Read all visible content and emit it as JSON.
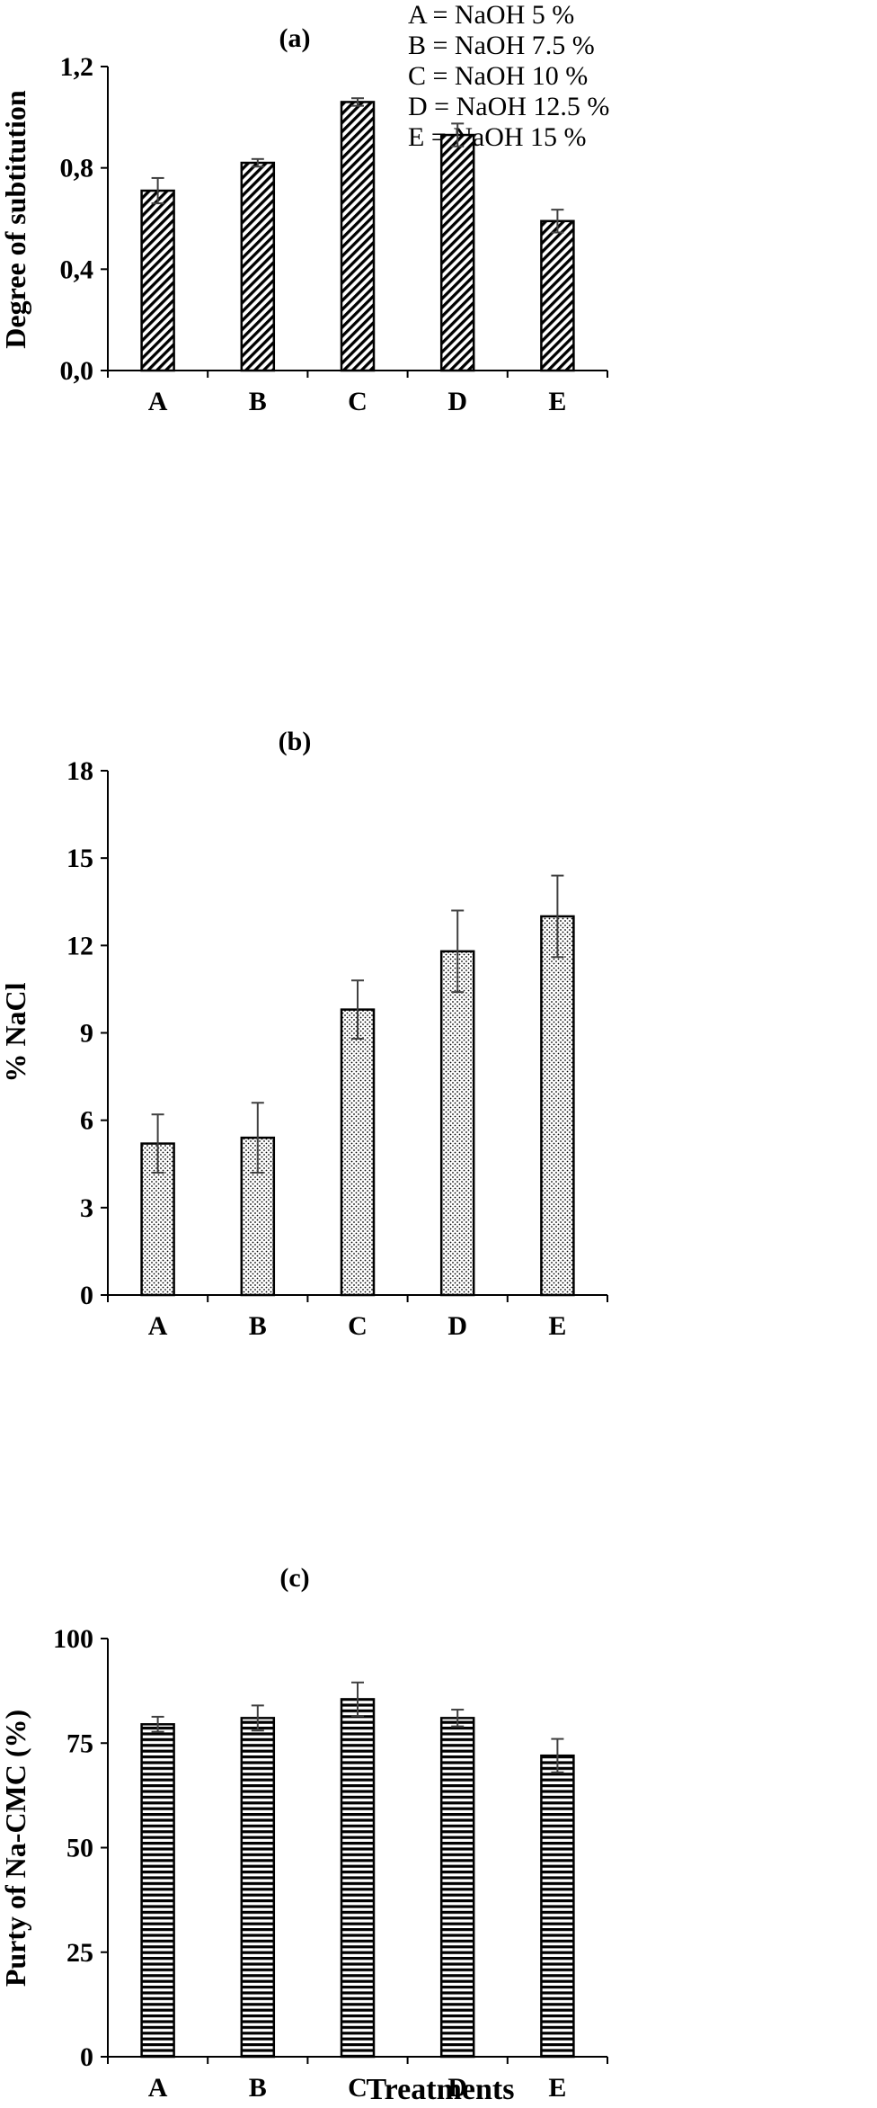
{
  "legend": [
    "A = NaOH 5 %",
    "B = NaOH 7.5 %",
    "C = NaOH 10 %",
    "D = NaOH 12.5 %",
    "E = NaOH 15 %"
  ],
  "colors": {
    "axis": "#000000",
    "bar_stroke": "#000000",
    "error_bar": "#404040",
    "background": "#ffffff"
  },
  "chart_data": [
    {
      "type": "bar",
      "panel_label": "(a)",
      "categories": [
        "A",
        "B",
        "C",
        "D",
        "E"
      ],
      "values": [
        0.71,
        0.82,
        1.06,
        0.93,
        0.59
      ],
      "errors": [
        0.05,
        0.015,
        0.015,
        0.045,
        0.045
      ],
      "xlabel": "",
      "ylabel": "Degree of subtitution",
      "ylim": [
        0,
        1.2
      ],
      "yticks": [
        0,
        0.4,
        0.8,
        1.2
      ],
      "ytick_labels": [
        "0,0",
        "0,4",
        "0,8",
        "1,2"
      ],
      "pattern": "diagonal-hatch",
      "grid": false
    },
    {
      "type": "bar",
      "panel_label": "(b)",
      "categories": [
        "A",
        "B",
        "C",
        "D",
        "E"
      ],
      "values": [
        5.2,
        5.4,
        9.8,
        11.8,
        13.0
      ],
      "errors": [
        1.0,
        1.2,
        1.0,
        1.4,
        1.4
      ],
      "xlabel": "",
      "ylabel": "% NaCl",
      "ylim": [
        0,
        18
      ],
      "yticks": [
        0,
        3,
        6,
        9,
        12,
        15,
        18
      ],
      "ytick_labels": [
        "0",
        "3",
        "6",
        "9",
        "12",
        "15",
        "18"
      ],
      "pattern": "dots",
      "grid": false
    },
    {
      "type": "bar",
      "panel_label": "(c)",
      "categories": [
        "A",
        "B",
        "C",
        "D",
        "E"
      ],
      "values": [
        79.5,
        81,
        85.5,
        81,
        72
      ],
      "errors": [
        1.8,
        3,
        4,
        2,
        4
      ],
      "xlabel": "Treatments",
      "ylabel": "Purty of Na-CMC (%)",
      "ylim": [
        0,
        100
      ],
      "yticks": [
        0,
        25,
        50,
        75,
        100
      ],
      "ytick_labels": [
        "0",
        "25",
        "50",
        "75",
        "100"
      ],
      "pattern": "horizontal-lines",
      "grid": false
    }
  ]
}
